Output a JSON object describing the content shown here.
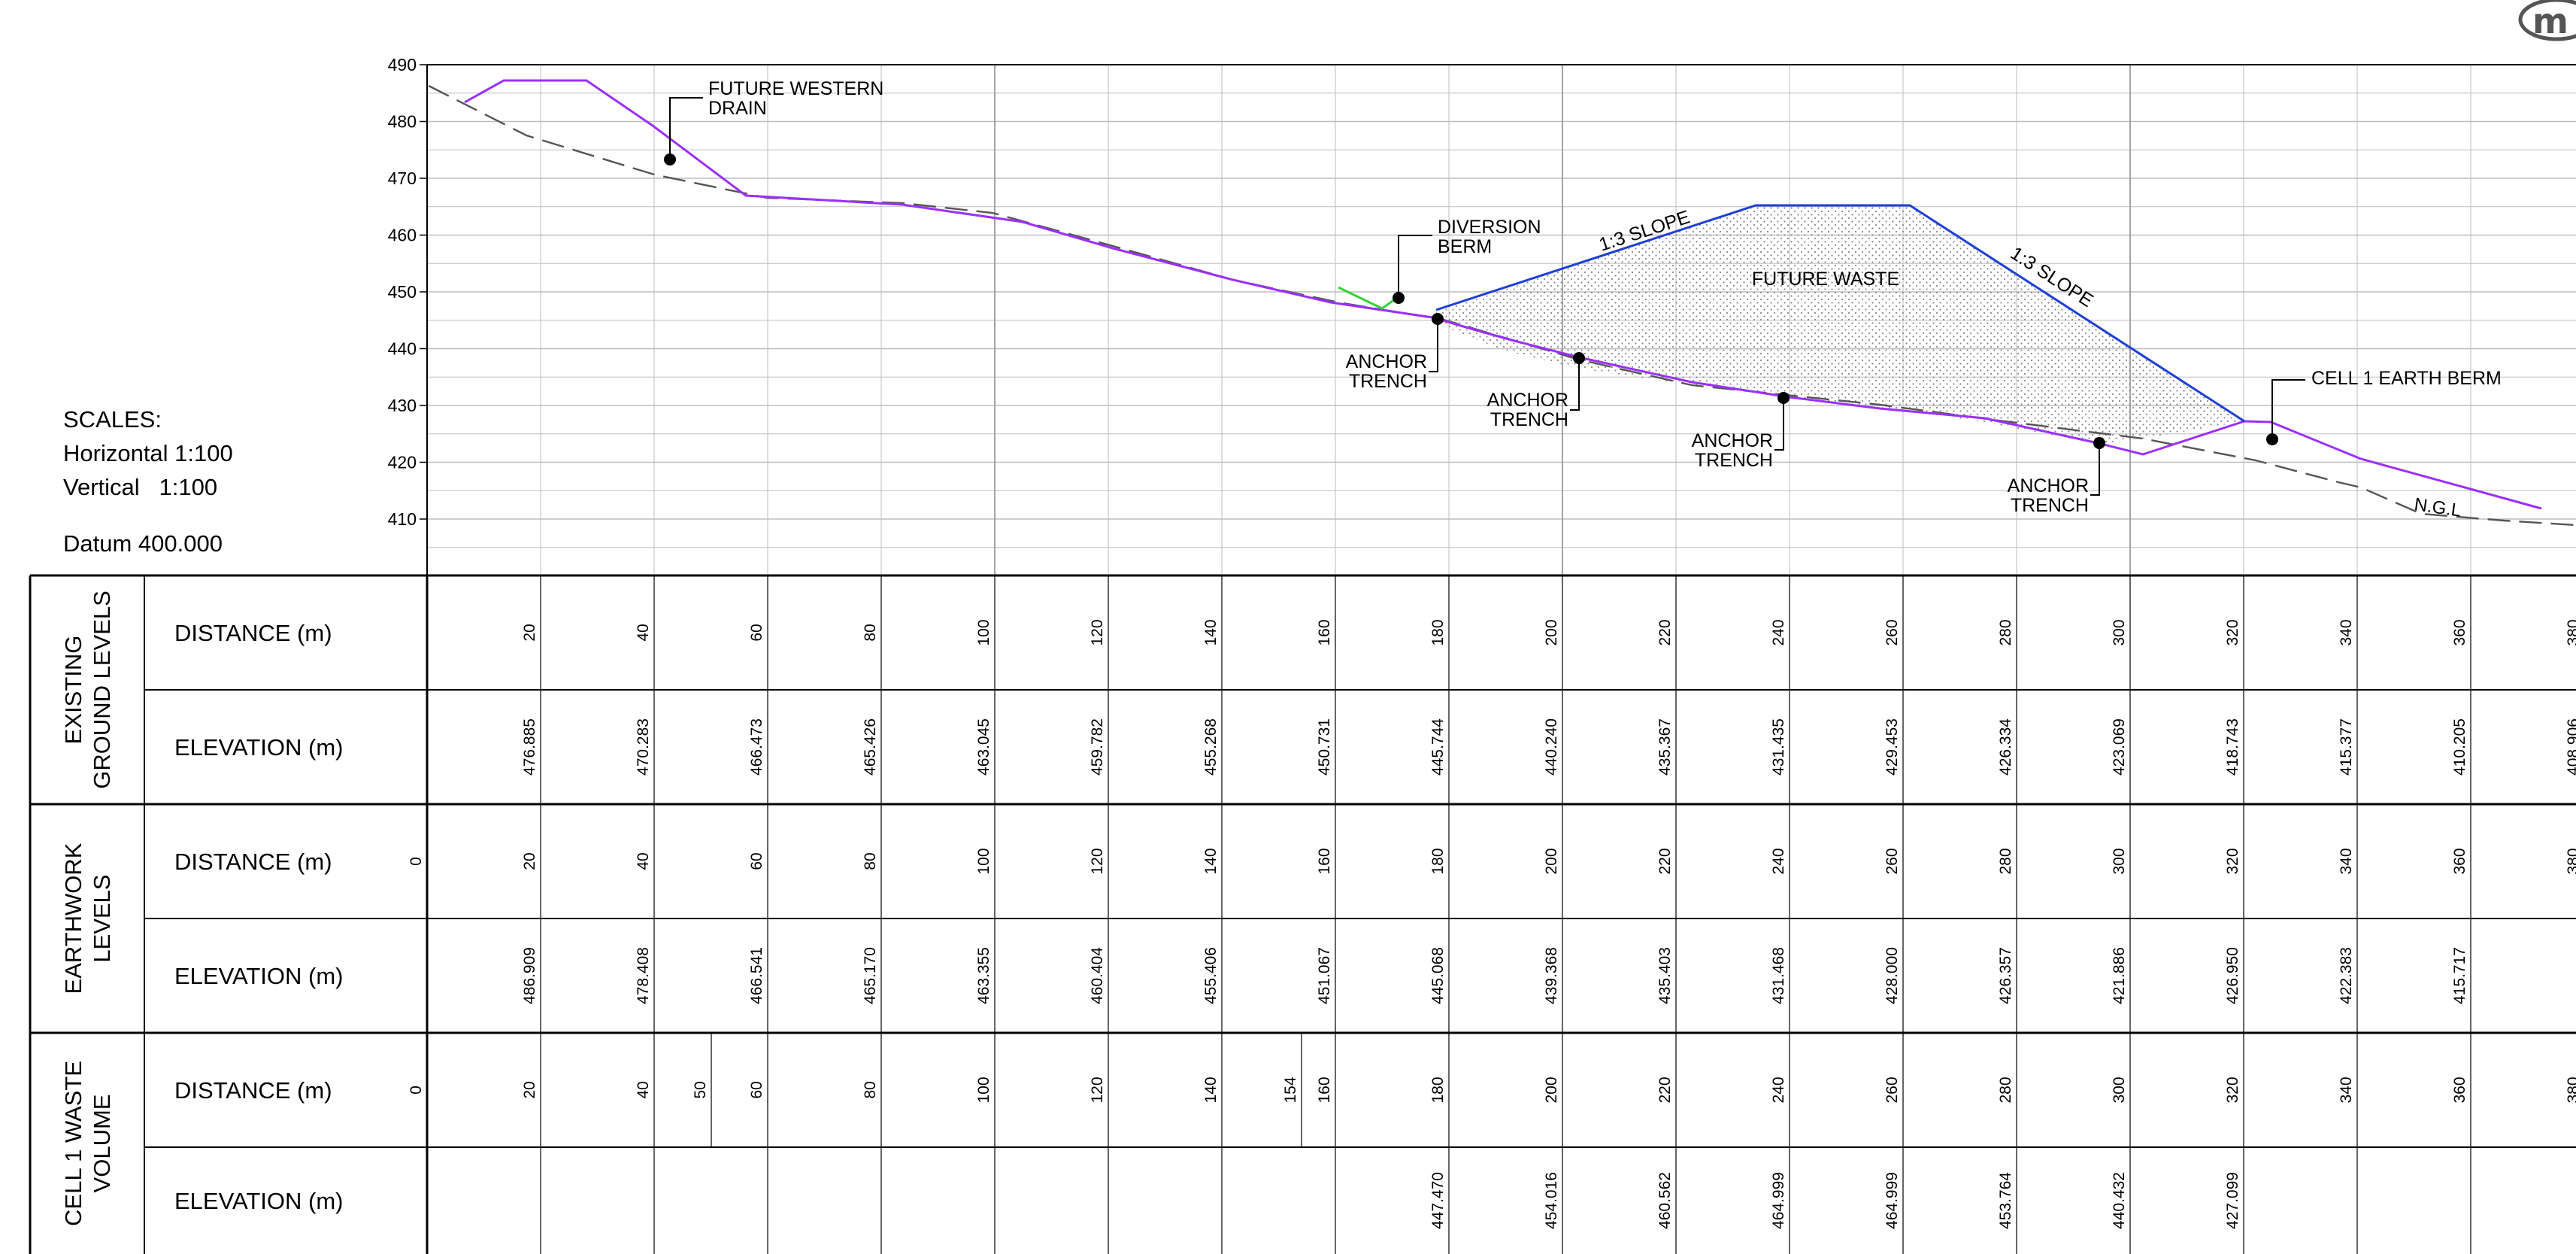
{
  "scales": {
    "title": "SCALES:",
    "horizontal": "Horizontal 1:100",
    "vertical": "Vertical   1:100",
    "datum": "Datum 400.000"
  },
  "profile": {
    "axis_ticks": [
      "490",
      "480",
      "470",
      "460",
      "450",
      "440",
      "430",
      "420",
      "410"
    ],
    "annotations": {
      "future_western_drain": [
        "FUTURE WESTERN",
        "DRAIN"
      ],
      "diversion_berm": [
        "DIVERSION",
        "BERM"
      ],
      "anchor_trench": [
        "ANCHOR",
        "TRENCH"
      ],
      "slope_left": "1:3 SLOPE",
      "slope_right": "1:3 SLOPE",
      "future_waste": "FUTURE WASTE",
      "cell1_earth_berm": "CELL 1 EARTH BERM",
      "ngl": "N.G.L"
    }
  },
  "table": {
    "row_label_distance": "DISTANCE (m)",
    "row_label_elevation": "ELEVATION (m)",
    "groups": [
      {
        "title": [
          "EXISTING",
          "GROUND LEVELS"
        ],
        "distances": [
          "20",
          "40",
          "60",
          "80",
          "100",
          "120",
          "140",
          "160",
          "180",
          "200",
          "220",
          "240",
          "260",
          "280",
          "300",
          "320",
          "340",
          "360",
          "380"
        ],
        "elevations": [
          "476.885",
          "470.283",
          "466.473",
          "465.426",
          "463.045",
          "459.782",
          "455.268",
          "450.731",
          "445.744",
          "440.240",
          "435.367",
          "431.435",
          "429.453",
          "426.334",
          "423.069",
          "418.743",
          "415.377",
          "410.205",
          "408.906"
        ]
      },
      {
        "title": [
          "EARTHWORK",
          "LEVELS"
        ],
        "distances": [
          "0",
          "20",
          "40",
          "60",
          "80",
          "100",
          "120",
          "140",
          "160",
          "180",
          "200",
          "220",
          "240",
          "260",
          "280",
          "300",
          "320",
          "340",
          "360",
          "380"
        ],
        "elevations": [
          "486.909",
          "478.408",
          "466.541",
          "465.170",
          "463.355",
          "460.404",
          "455.406",
          "451.067",
          "445.068",
          "439.368",
          "435.403",
          "431.468",
          "428.000",
          "426.357",
          "421.886",
          "426.950",
          "422.383",
          "415.717"
        ]
      },
      {
        "title": [
          "CELL 1 WASTE",
          "VOLUME"
        ],
        "distances": [
          "0",
          "20",
          "40",
          "50",
          "60",
          "80",
          "100",
          "120",
          "140",
          "154",
          "160",
          "180",
          "200",
          "220",
          "240",
          "260",
          "280",
          "300",
          "320",
          "340",
          "360",
          "380"
        ],
        "elevations": [
          "447.470",
          "454.016",
          "460.562",
          "464.999",
          "464.999",
          "453.764",
          "440.432",
          "427.099"
        ]
      }
    ]
  },
  "colors": {
    "existing_ground": "#555555",
    "earthwork": "#9b30ff",
    "future_waste": "#1e3fd6",
    "excavation": "#35d435",
    "grid": "#bdbdbd"
  },
  "logo": {
    "icon": "m-logo-icon",
    "text": "m"
  }
}
